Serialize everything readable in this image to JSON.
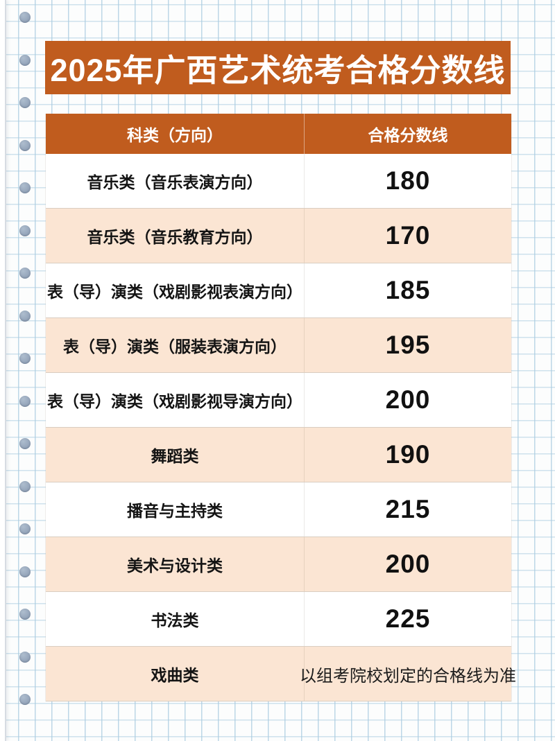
{
  "page": {
    "title": "2025年广西艺术统考合格分数线"
  },
  "table": {
    "headers": {
      "category": "科类（方向）",
      "score": "合格分数线"
    },
    "rows": [
      {
        "category": "音乐类（音乐表演方向）",
        "score": "180"
      },
      {
        "category": "音乐类（音乐教育方向）",
        "score": "170"
      },
      {
        "category": "表（导）演类（戏剧影视表演方向）",
        "score": "185"
      },
      {
        "category": "表（导）演类（服装表演方向）",
        "score": "195"
      },
      {
        "category": "表（导）演类（戏剧影视导演方向）",
        "score": "200"
      },
      {
        "category": "舞蹈类",
        "score": "190"
      },
      {
        "category": "播音与主持类",
        "score": "215"
      },
      {
        "category": "美术与设计类",
        "score": "200"
      },
      {
        "category": "书法类",
        "score": "225"
      },
      {
        "category": "戏曲类",
        "score": "以组考院校划定的合格线为准"
      }
    ]
  },
  "decor": {
    "binder_hole_icon": "circle",
    "hole_count": 17
  },
  "colors": {
    "accent_orange": "#c05c1e",
    "row_peach": "#fbe5d3",
    "row_white": "#ffffff",
    "grid_blue": "#a8cbe0",
    "hole_gray": "#9aa9bc",
    "text_black": "#141414",
    "text_white": "#ffffff"
  }
}
